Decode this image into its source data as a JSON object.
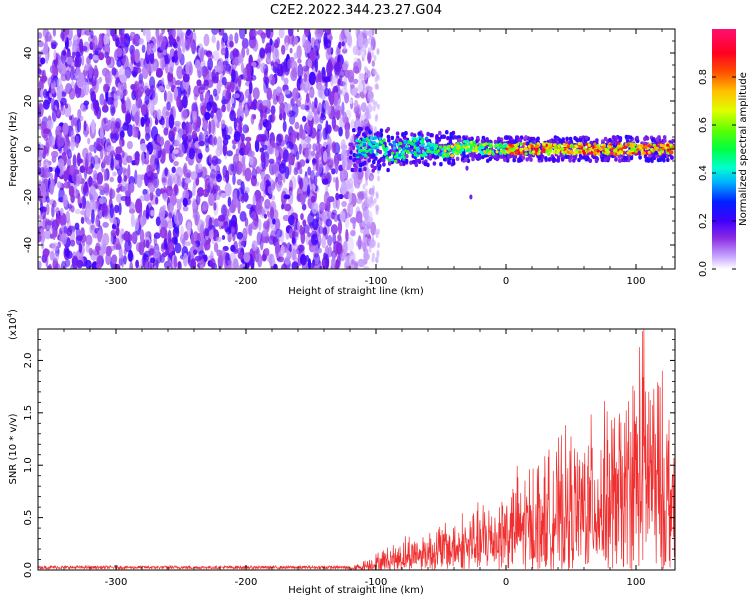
{
  "title": "C2E2.2022.344.23.27.G04",
  "colors": {
    "snr_line": "#f03030",
    "axis": "#000000"
  },
  "chart_data": [
    {
      "type": "heatmap",
      "title": "C2E2.2022.344.23.27.G04",
      "xlabel": "Height of straight line (km)",
      "ylabel": "Frequency (Hz)",
      "xlim": [
        -360,
        130
      ],
      "ylim": [
        -50,
        50
      ],
      "x_ticks": [
        -300,
        -200,
        -100,
        0,
        100
      ],
      "y_ticks": [
        -40,
        -20,
        0,
        20,
        40
      ],
      "noise_region_x": [
        -360,
        -110
      ],
      "signal_band": {
        "x": [
          -120,
          130
        ],
        "center_freq": 0,
        "halfwidth": 6
      },
      "colorbar": {
        "label": "Normalized spectral amplitude",
        "range": [
          0.0,
          1.0
        ],
        "ticks": [
          "0.0",
          "0.2",
          "0.4",
          "0.6",
          "0.8"
        ],
        "tick_values": [
          0.0,
          0.2,
          0.4,
          0.6,
          0.8
        ]
      }
    },
    {
      "type": "line",
      "xlabel": "Height of straight line (km)",
      "ylabel": "SNR (10 * v/v)",
      "y_multiplier": "(x10",
      "y_multiplier_exp": "4",
      "y_multiplier_close": ")",
      "xlim": [
        -360,
        130
      ],
      "ylim": [
        0,
        2.3
      ],
      "x_ticks": [
        -300,
        -200,
        -100,
        0,
        100
      ],
      "y_ticks": [
        "0.0",
        "0.5",
        "1.0",
        "1.5",
        "2.0"
      ],
      "y_tick_values": [
        0.0,
        0.5,
        1.0,
        1.5,
        2.0
      ],
      "envelope": [
        {
          "x": -360,
          "y": 0.02
        },
        {
          "x": -120,
          "y": 0.02
        },
        {
          "x": -100,
          "y": 0.15
        },
        {
          "x": -80,
          "y": 0.3
        },
        {
          "x": -50,
          "y": 0.45
        },
        {
          "x": -20,
          "y": 0.6
        },
        {
          "x": 0,
          "y": 0.85
        },
        {
          "x": 30,
          "y": 1.1
        },
        {
          "x": 60,
          "y": 1.35
        },
        {
          "x": 90,
          "y": 1.6
        },
        {
          "x": 105,
          "y": 2.28
        },
        {
          "x": 130,
          "y": 1.45
        }
      ],
      "peak": {
        "x": 105,
        "y": 2.28
      }
    }
  ]
}
